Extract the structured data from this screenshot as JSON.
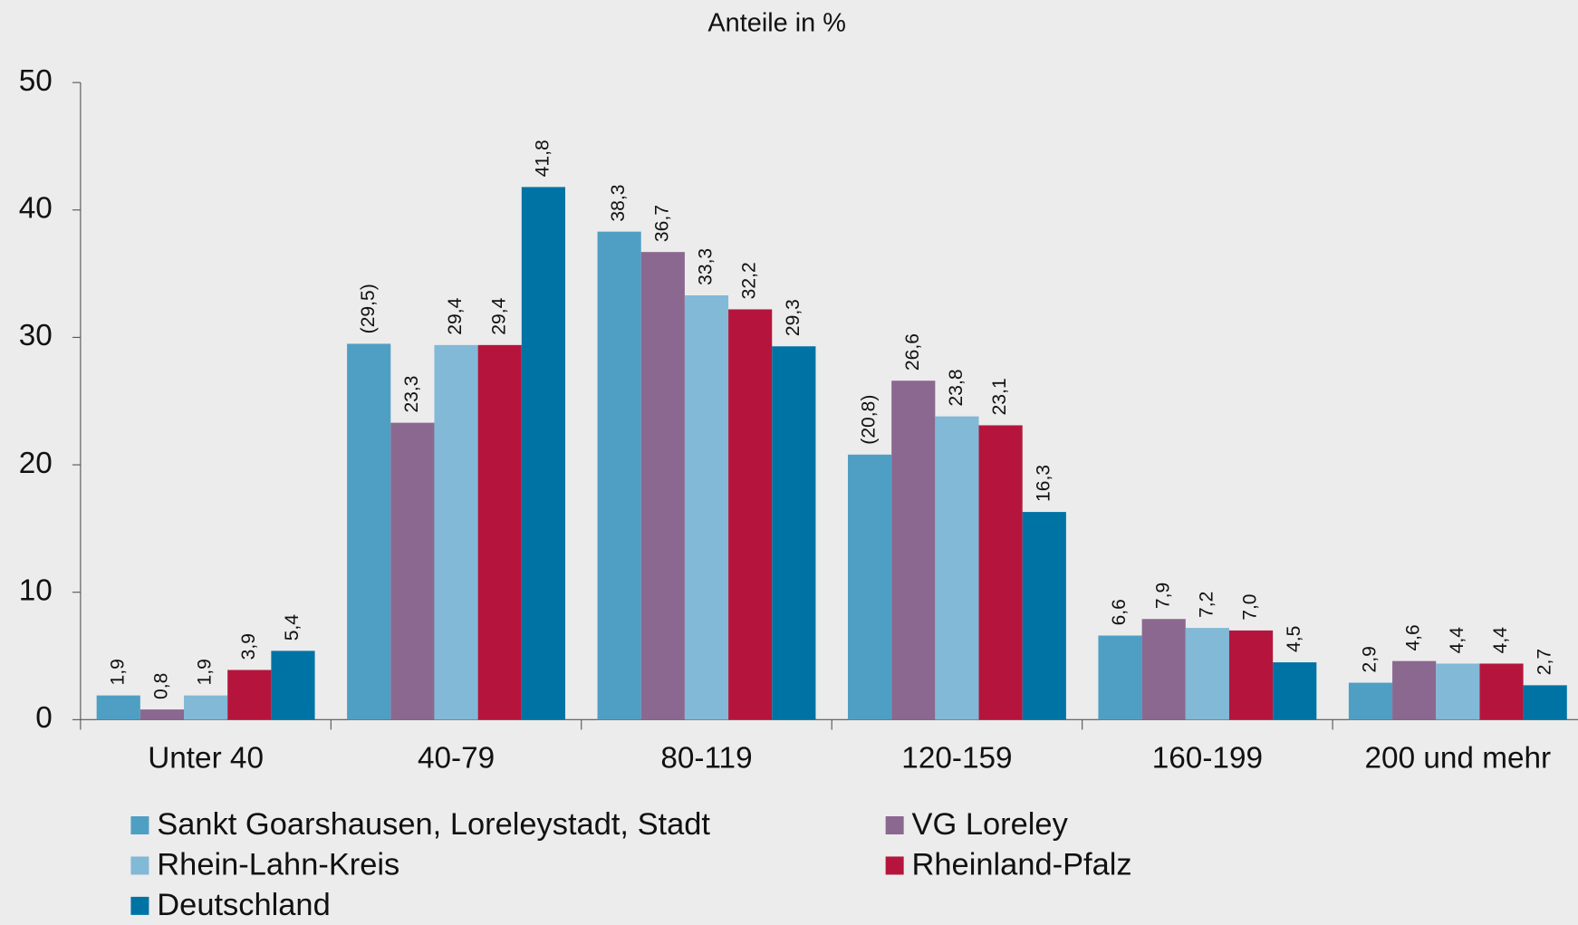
{
  "chart_data": {
    "type": "bar",
    "title": "Anteile in %",
    "categories": [
      "Unter 40",
      "40-79",
      "80-119",
      "120-159",
      "160-199",
      "200 und mehr"
    ],
    "series": [
      {
        "name": "Sankt Goarshausen, Loreleystadt, Stadt",
        "color": "#4f9fc4",
        "values": [
          1.9,
          29.5,
          38.3,
          20.8,
          6.6,
          2.9
        ],
        "value_labels": [
          "1,9",
          "(29,5)",
          "38,3",
          "(20,8)",
          "6,6",
          "2,9"
        ]
      },
      {
        "name": "VG Loreley",
        "color": "#8b6890",
        "values": [
          0.8,
          23.3,
          36.7,
          26.6,
          7.9,
          4.6
        ],
        "value_labels": [
          "0,8",
          "23,3",
          "36,7",
          "26,6",
          "7,9",
          "4,6"
        ]
      },
      {
        "name": "Rhein-Lahn-Kreis",
        "color": "#82b9d6",
        "values": [
          1.9,
          29.4,
          33.3,
          23.8,
          7.2,
          4.4
        ],
        "value_labels": [
          "1,9",
          "29,4",
          "33,3",
          "23,8",
          "7,2",
          "4,4"
        ]
      },
      {
        "name": "Rheinland-Pfalz",
        "color": "#b5153c",
        "values": [
          3.9,
          29.4,
          32.2,
          23.1,
          7.0,
          4.4
        ],
        "value_labels": [
          "3,9",
          "29,4",
          "32,2",
          "23,1",
          "7,0",
          "4,4"
        ]
      },
      {
        "name": "Deutschland",
        "color": "#0073a5",
        "values": [
          5.4,
          41.8,
          29.3,
          16.3,
          4.5,
          2.7
        ],
        "value_labels": [
          "5,4",
          "41,8",
          "29,3",
          "16,3",
          "4,5",
          "2,7"
        ]
      }
    ],
    "ylim": [
      0,
      50
    ],
    "yticks": [
      0,
      10,
      20,
      30,
      40,
      50
    ],
    "grid": false,
    "legend": "bottom"
  }
}
